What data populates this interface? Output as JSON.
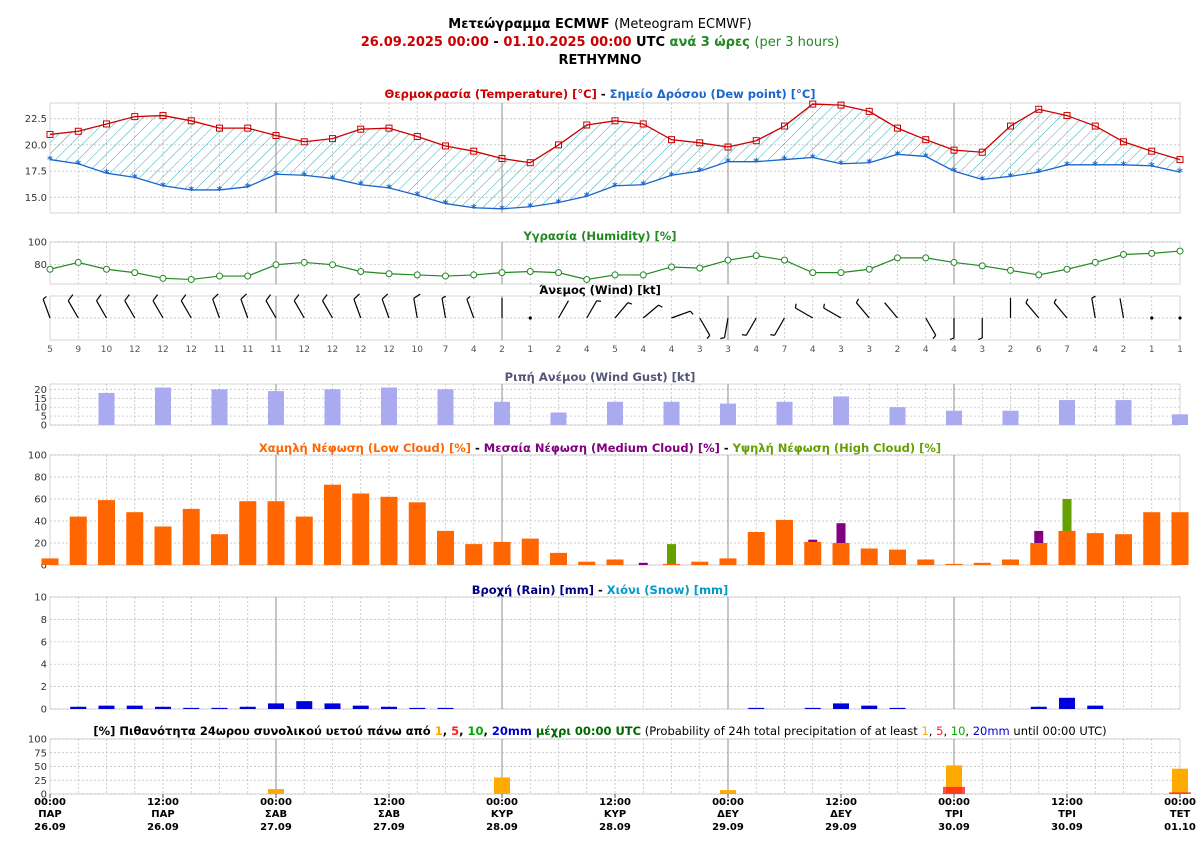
{
  "header": {
    "title_greek": "Μετεώγραμμα ECMWF",
    "title_english": "(Meteogram ECMWF)",
    "date_from": "26.09.2025 00:00",
    "dash": "-",
    "date_to": "01.10.2025 00:00",
    "utc": "UTC",
    "step_greek": "ανά 3 ώρες",
    "step_english": "(per 3 hours)",
    "location": "RETHYMNO"
  },
  "colors": {
    "temperature": "#cc0000",
    "dewpoint": "#1a66cc",
    "humidity": "#228822",
    "gust": "#aaaaf0",
    "low_cloud": "#ff6600",
    "medium_cloud": "#800080",
    "high_cloud": "#66a000",
    "rain": "#0000dd",
    "prob_1mm": "#ffaa00",
    "prob_5mm": "#ff2222",
    "prob_10mm": "#00aa00",
    "prob_20mm": "#0000cc"
  },
  "chart_data": [
    {
      "type": "line",
      "id": "temperature",
      "title_parts": [
        "Θερμοκρασία (Temperature) [°C]",
        " - ",
        "Σημείο Δρόσου (Dew point) [°C]"
      ],
      "ylim": [
        13.5,
        24
      ],
      "yticks": [
        "15.0",
        "17.5",
        "20.0",
        "22.5"
      ],
      "series": [
        {
          "name": "Θερμοκρασία (Temperature) [°C]",
          "marker": "square",
          "values": [
            21.0,
            21.3,
            22.0,
            22.7,
            22.8,
            22.3,
            21.6,
            21.6,
            20.9,
            20.3,
            20.6,
            21.5,
            21.6,
            20.8,
            19.9,
            19.4,
            18.7,
            18.3,
            20.0,
            21.9,
            22.3,
            22.0,
            20.5,
            20.2,
            19.8,
            20.4,
            21.8,
            23.9,
            23.8,
            23.2,
            21.6,
            20.5,
            19.5,
            19.3,
            21.8,
            23.4,
            22.8,
            21.8,
            20.3,
            19.4,
            18.6
          ]
        },
        {
          "name": "Σημείο Δρόσου (Dew point) [°C]",
          "marker": "star",
          "values": [
            18.6,
            18.2,
            17.3,
            16.9,
            16.1,
            15.7,
            15.7,
            16.0,
            17.2,
            17.1,
            16.8,
            16.2,
            15.9,
            15.2,
            14.4,
            14.0,
            13.9,
            14.1,
            14.5,
            15.1,
            16.1,
            16.2,
            17.1,
            17.5,
            18.4,
            18.4,
            18.6,
            18.8,
            18.2,
            18.3,
            19.1,
            18.9,
            17.5,
            16.7,
            17.0,
            17.4,
            18.1,
            18.1,
            18.1,
            18.0,
            17.4
          ]
        }
      ]
    },
    {
      "type": "line",
      "id": "humidity",
      "title": "Υγρασία (Humidity) [%]",
      "ylim": [
        63,
        100
      ],
      "yticks": [
        "80",
        "100"
      ],
      "series": [
        {
          "name": "Υγρασία (Humidity) [%]",
          "marker": "circle",
          "values": [
            76,
            82,
            76,
            73,
            68,
            67,
            70,
            70,
            80,
            82,
            80,
            74,
            72,
            71,
            70,
            71,
            73,
            74,
            73,
            67,
            71,
            71,
            78,
            77,
            84,
            88,
            84,
            73,
            73,
            76,
            86,
            86,
            82,
            79,
            75,
            71,
            76,
            82,
            89,
            90,
            92
          ]
        }
      ]
    },
    {
      "type": "wind_barbs",
      "id": "wind",
      "title": "Άνεμος (Wind) [kt]",
      "speeds": [
        5,
        9,
        10,
        12,
        12,
        12,
        11,
        11,
        11,
        12,
        12,
        12,
        12,
        10,
        7,
        4,
        2,
        1,
        2,
        4,
        5,
        4,
        4,
        3,
        3,
        4,
        7,
        4,
        3,
        3,
        2,
        4,
        4,
        3,
        2,
        6,
        7,
        4,
        2,
        1,
        1
      ],
      "directions_deg": [
        340,
        330,
        330,
        330,
        330,
        330,
        340,
        340,
        330,
        330,
        330,
        340,
        340,
        350,
        350,
        340,
        0,
        0,
        30,
        30,
        40,
        50,
        70,
        150,
        190,
        210,
        210,
        300,
        300,
        320,
        320,
        150,
        180,
        180,
        0,
        320,
        320,
        350,
        350,
        0,
        150
      ]
    },
    {
      "type": "bar",
      "id": "gust",
      "title": "Ριπή Ανέμου (Wind Gust) [kt]",
      "ylim": [
        0,
        23
      ],
      "yticks": [
        "0",
        "5",
        "10",
        "15",
        "20"
      ],
      "series": [
        {
          "name": "Ριπή Ανέμου (Wind Gust) [kt]",
          "values": [
            null,
            null,
            18,
            null,
            21,
            null,
            20,
            null,
            19,
            null,
            20,
            null,
            21,
            null,
            20,
            null,
            13,
            null,
            7,
            null,
            13,
            null,
            13,
            null,
            12,
            null,
            13,
            null,
            16,
            null,
            10,
            null,
            8,
            null,
            8,
            null,
            14,
            null,
            14,
            null,
            6
          ]
        }
      ]
    },
    {
      "type": "bar",
      "id": "cloud",
      "title_parts": [
        "Χαμηλή Νέφωση (Low Cloud) [%]",
        " - ",
        "Μεσαία Νέφωση (Medium Cloud) [%]",
        " - ",
        "Υψηλή Νέφωση (High Cloud) [%]"
      ],
      "ylim": [
        0,
        100
      ],
      "yticks": [
        "0",
        "20",
        "40",
        "60",
        "80",
        "100"
      ],
      "series": [
        {
          "name": "Χαμηλή Νέφωση (Low Cloud) [%]",
          "values": [
            6,
            44,
            59,
            48,
            35,
            51,
            28,
            58,
            58,
            44,
            73,
            65,
            62,
            57,
            31,
            19,
            21,
            24,
            11,
            3,
            5,
            0,
            1,
            3,
            6,
            30,
            41,
            21,
            20,
            15,
            14,
            5,
            1,
            2,
            5,
            20,
            31,
            29,
            28,
            48,
            48
          ]
        },
        {
          "name": "Μεσαία Νέφωση (Medium Cloud) [%]",
          "values": [
            0,
            0,
            0,
            0,
            0,
            0,
            0,
            0,
            0,
            0,
            0,
            0,
            0,
            0,
            0,
            0,
            0,
            0,
            0,
            0,
            0,
            2,
            0,
            0,
            0,
            0,
            0,
            23,
            38,
            0,
            0,
            0,
            0,
            0,
            0,
            31,
            0,
            0,
            0,
            0,
            0
          ]
        },
        {
          "name": "Υψηλή Νέφωση (High Cloud) [%]",
          "values": [
            0,
            0,
            0,
            0,
            0,
            0,
            0,
            0,
            0,
            0,
            0,
            0,
            0,
            0,
            0,
            0,
            0,
            0,
            0,
            0,
            0,
            0,
            19,
            0,
            0,
            0,
            0,
            0,
            0,
            0,
            0,
            0,
            0,
            0,
            0,
            0,
            60,
            0,
            0,
            0,
            0
          ]
        }
      ]
    },
    {
      "type": "bar",
      "id": "precip",
      "title_parts": [
        "Βροχή (Rain) [mm]",
        " - ",
        "Χιόνι (Snow) [mm]"
      ],
      "ylim": [
        0,
        10
      ],
      "yticks": [
        "0",
        "2",
        "4",
        "6",
        "8",
        "10"
      ],
      "series": [
        {
          "name": "Βροχή (Rain) [mm]",
          "values": [
            0,
            0.2,
            0.3,
            0.3,
            0.2,
            0.1,
            0.1,
            0.2,
            0.5,
            0.7,
            0.5,
            0.3,
            0.2,
            0.1,
            0.1,
            0,
            0,
            0,
            0,
            0,
            0,
            0,
            0,
            0,
            0,
            0.1,
            0,
            0.1,
            0.5,
            0.3,
            0.1,
            0,
            0,
            0,
            0,
            0.2,
            1.0,
            0.3,
            0,
            0,
            0
          ]
        },
        {
          "name": "Χιόνι (Snow) [mm]",
          "values": [
            0,
            0,
            0,
            0,
            0,
            0,
            0,
            0,
            0,
            0,
            0,
            0,
            0,
            0,
            0,
            0,
            0,
            0,
            0,
            0,
            0,
            0,
            0,
            0,
            0,
            0,
            0,
            0,
            0,
            0,
            0,
            0,
            0,
            0,
            0,
            0,
            0,
            0,
            0,
            0,
            0
          ]
        }
      ]
    },
    {
      "type": "bar",
      "id": "probability",
      "title_parts": [
        "[%] Πιθανότητα 24ωρου συνολικού υετού πάνω από ",
        "1",
        ", ",
        "5",
        ", ",
        "10",
        ", ",
        "20mm",
        " μέχρι 00:00 UTC",
        " (Probability of 24h total precipitation of at least ",
        "1",
        ", ",
        "5",
        ", ",
        "10",
        ", ",
        "20mm",
        " until 00:00 UTC)"
      ],
      "ylim": [
        0,
        100
      ],
      "yticks": [
        "0",
        "25",
        "50",
        "75",
        "100"
      ],
      "categories": [
        "27.09",
        "28.09",
        "29.09",
        "30.09",
        "01.10"
      ],
      "series": [
        {
          "name": "1",
          "values": [
            9,
            30,
            7,
            52,
            46
          ]
        },
        {
          "name": "5",
          "values": [
            0,
            0,
            0,
            13,
            3
          ]
        },
        {
          "name": "10",
          "values": [
            0,
            0,
            0,
            0,
            0
          ]
        },
        {
          "name": "20mm",
          "values": [
            0,
            0,
            0,
            0,
            0
          ]
        }
      ]
    }
  ],
  "x_axis": {
    "ticks": [
      {
        "time": "00:00",
        "day": "ΠΑΡ",
        "date": "26.09"
      },
      {
        "time": "12:00",
        "day": "ΠΑΡ",
        "date": "26.09"
      },
      {
        "time": "00:00",
        "day": "ΣΑΒ",
        "date": "27.09"
      },
      {
        "time": "12:00",
        "day": "ΣΑΒ",
        "date": "27.09"
      },
      {
        "time": "00:00",
        "day": "ΚΥΡ",
        "date": "28.09"
      },
      {
        "time": "12:00",
        "day": "ΚΥΡ",
        "date": "28.09"
      },
      {
        "time": "00:00",
        "day": "ΔΕΥ",
        "date": "29.09"
      },
      {
        "time": "12:00",
        "day": "ΔΕΥ",
        "date": "29.09"
      },
      {
        "time": "00:00",
        "day": "ΤΡΙ",
        "date": "30.09"
      },
      {
        "time": "12:00",
        "day": "ΤΡΙ",
        "date": "30.09"
      },
      {
        "time": "00:00",
        "day": "ΤΕΤ",
        "date": "01.10"
      }
    ]
  }
}
